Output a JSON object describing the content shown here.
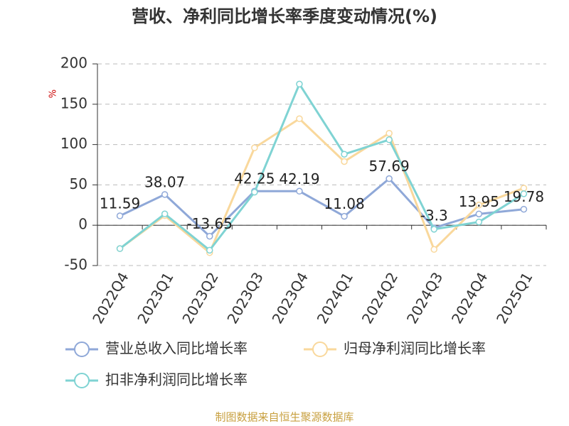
{
  "chart_data": {
    "type": "line",
    "title": "营收、净利同比增长率季度变动情况(%)",
    "y_label": "%",
    "categories": [
      "2022Q4",
      "2023Q1",
      "2023Q2",
      "2023Q3",
      "2023Q4",
      "2024Q1",
      "2024Q2",
      "2024Q3",
      "2024Q4",
      "2025Q1"
    ],
    "series": [
      {
        "name": "营业总收入同比增长率",
        "color": "#8fa8d8",
        "values": [
          11.59,
          38.07,
          -13.65,
          42.25,
          42.19,
          11.08,
          57.69,
          -3.3,
          13.95,
          19.78
        ],
        "show_labels": true
      },
      {
        "name": "归母净利润同比增长率",
        "color": "#f9d89c",
        "values": [
          -29,
          12,
          -34,
          96,
          132,
          79,
          114,
          -30,
          25,
          46
        ],
        "show_labels": false
      },
      {
        "name": "扣非净利润同比增长率",
        "color": "#7fd3d3",
        "values": [
          -29,
          14,
          -31,
          41,
          175,
          88,
          106,
          -5,
          4,
          39
        ],
        "show_labels": false
      }
    ],
    "ylim": [
      -50,
      200
    ],
    "yticks": [
      -50,
      0,
      50,
      100,
      150,
      200
    ],
    "grid": true,
    "source": "制图数据来自恒生聚源数据库"
  }
}
